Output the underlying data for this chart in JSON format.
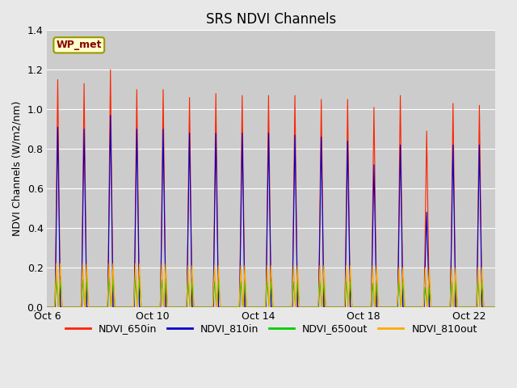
{
  "title": "SRS NDVI Channels",
  "ylabel": "NDVI Channels (W/m2/nm)",
  "ylim": [
    0.0,
    1.4
  ],
  "background_color": "#e8e8e8",
  "plot_bg_color": "#cccccc",
  "legend_entries": [
    "NDVI_650in",
    "NDVI_810in",
    "NDVI_650out",
    "NDVI_810out"
  ],
  "legend_colors": [
    "#ff2200",
    "#0000cc",
    "#00cc00",
    "#ffaa00"
  ],
  "annotation_text": "WP_met",
  "annotation_bg": "#ffffcc",
  "annotation_border": "#999900",
  "annotation_text_color": "#880000",
  "series_colors": {
    "NDVI_650in": "#ff2200",
    "NDVI_810in": "#0000cc",
    "NDVI_650out": "#00cc00",
    "NDVI_810out": "#ffaa00"
  },
  "x_tick_labels": [
    "Oct 6",
    "Oct 10",
    "Oct 14",
    "Oct 18",
    "Oct 22"
  ],
  "n_days": 17,
  "pts_per_day": 100,
  "peaks_650in": [
    1.15,
    1.13,
    1.2,
    1.1,
    1.1,
    1.06,
    1.08,
    1.07,
    1.07,
    1.07,
    1.05,
    1.05,
    1.01,
    1.07,
    0.89,
    1.03,
    1.02
  ],
  "peaks_810in": [
    0.91,
    0.9,
    0.97,
    0.9,
    0.9,
    0.88,
    0.88,
    0.88,
    0.88,
    0.87,
    0.86,
    0.84,
    0.72,
    0.82,
    0.48,
    0.82,
    0.82
  ],
  "peaks_650out": [
    0.14,
    0.14,
    0.15,
    0.14,
    0.14,
    0.13,
    0.13,
    0.13,
    0.13,
    0.13,
    0.13,
    0.13,
    0.12,
    0.13,
    0.1,
    0.13,
    0.13
  ],
  "peaks_810out": [
    0.22,
    0.22,
    0.22,
    0.22,
    0.22,
    0.21,
    0.21,
    0.21,
    0.21,
    0.21,
    0.21,
    0.21,
    0.21,
    0.2,
    0.2,
    0.2,
    0.2
  ]
}
